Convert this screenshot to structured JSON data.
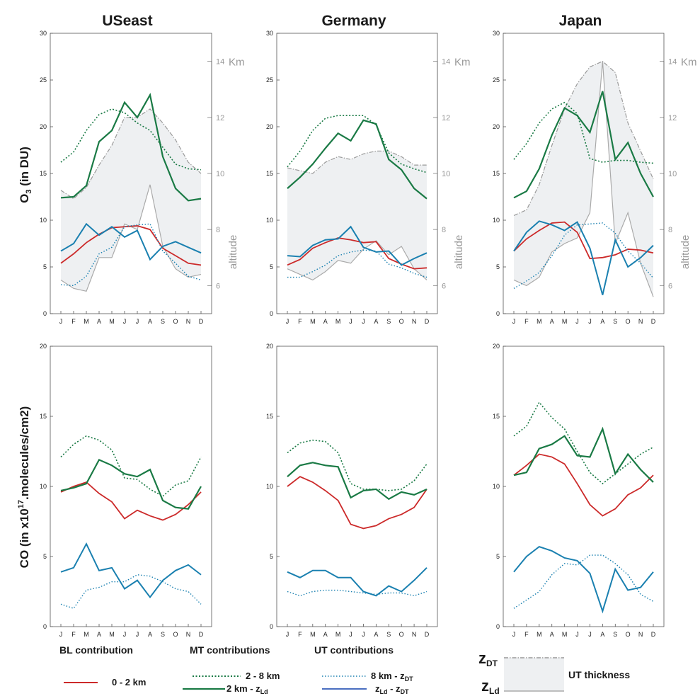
{
  "months": [
    "J",
    "F",
    "M",
    "A",
    "M",
    "J",
    "J",
    "A",
    "S",
    "O",
    "N",
    "D"
  ],
  "colors": {
    "bl": "#cc2a2a",
    "mt": "#1a7a45",
    "ut": "#1a80b0",
    "band": "#eef0f2",
    "grey": "#aaaaaa"
  },
  "labels": {
    "o3_ylabel": "O3 (in DU)",
    "o3_main": "O",
    "o3_sub": "3",
    "o3_rest": " (in DU)",
    "co_main": "CO (in x10",
    "co_sup": "17",
    "co_rest": ".molecules/cm2)",
    "altitude": "altitude",
    "km": "Km",
    "alt_ticks": [
      "6",
      "8",
      "10",
      "12",
      "14"
    ],
    "o3_yticks": [
      "0",
      "5",
      "10",
      "15",
      "20",
      "25",
      "30"
    ],
    "co_yticks": [
      "0",
      "5",
      "10",
      "15",
      "20"
    ]
  },
  "legend": {
    "bl_header": "BL contribution",
    "mt_header": "MT contributions",
    "ut_header": "UT contributions",
    "bl_item": "0 - 2 km",
    "mt_item1": "2 - 8 km",
    "mt_item2_main": "2 km - z",
    "mt_item2_sub": "Ld",
    "ut_item1_main": "8 km - z",
    "ut_item1_sub": "DT",
    "ut_item2_z1": "z",
    "ut_item2_s1": "Ld",
    "ut_item2_mid": " - z",
    "ut_item2_s2": "DT",
    "zdt_main": "z",
    "zdt_sub": "DT",
    "zld_main": "z",
    "zld_sub": "Ld",
    "ut_thickness": "UT thickness"
  },
  "chart_data": [
    {
      "type": "line",
      "title": "USeast",
      "region": "O3",
      "ylim": [
        0,
        30
      ],
      "altlim": [
        5,
        15
      ],
      "series": [
        {
          "name": "0 - 2 km",
          "values": [
            5.4,
            6.4,
            7.6,
            8.5,
            9.2,
            9.3,
            9.4,
            9.0,
            7.0,
            6.2,
            5.4,
            5.2
          ]
        },
        {
          "name": "2 - 8 km",
          "values": [
            16.2,
            17.3,
            19.6,
            21.3,
            21.9,
            21.5,
            20.4,
            19.6,
            17.8,
            16.0,
            15.5,
            15.4
          ]
        },
        {
          "name": "2 km - zLd",
          "values": [
            12.4,
            12.5,
            13.7,
            18.4,
            19.6,
            22.6,
            21.0,
            23.4,
            16.8,
            13.4,
            12.1,
            12.3
          ]
        },
        {
          "name": "8 km - zDT",
          "values": [
            3.1,
            3.0,
            4.0,
            6.4,
            7.1,
            9.3,
            9.5,
            9.6,
            6.7,
            5.4,
            4.0,
            3.6
          ]
        },
        {
          "name": "zLd - zDT",
          "values": [
            6.7,
            7.5,
            9.6,
            8.4,
            9.3,
            8.2,
            8.9,
            5.8,
            7.2,
            7.7,
            7.1,
            6.5
          ]
        }
      ],
      "z_dt_km": [
        9.4,
        9.1,
        9.5,
        10.3,
        11.0,
        12.0,
        12.0,
        12.3,
        11.8,
        11.2,
        10.4,
        10.0
      ],
      "z_ld_km": [
        6.2,
        5.9,
        5.8,
        7.0,
        7.0,
        8.2,
        8.0,
        9.6,
        7.4,
        6.6,
        6.3,
        6.4
      ]
    },
    {
      "type": "line",
      "title": "Germany",
      "region": "O3",
      "ylim": [
        0,
        30
      ],
      "altlim": [
        5,
        15
      ],
      "series": [
        {
          "name": "0 - 2 km",
          "values": [
            5.2,
            5.8,
            7.0,
            7.6,
            8.1,
            7.9,
            7.6,
            7.7,
            5.9,
            5.3,
            4.8,
            4.9
          ]
        },
        {
          "name": "2 - 8 km",
          "values": [
            15.7,
            17.4,
            19.6,
            20.9,
            21.2,
            21.2,
            21.2,
            20.2,
            17.2,
            16.0,
            15.5,
            15.1
          ]
        },
        {
          "name": "2 km - zLd",
          "values": [
            13.4,
            14.6,
            16.0,
            17.7,
            19.3,
            18.5,
            20.7,
            20.3,
            16.5,
            15.4,
            13.4,
            12.3
          ]
        },
        {
          "name": "8 km - zDT",
          "values": [
            3.9,
            3.9,
            4.5,
            5.2,
            6.2,
            6.6,
            6.8,
            6.7,
            5.3,
            4.9,
            4.3,
            3.9
          ]
        },
        {
          "name": "zLd - zDT",
          "values": [
            6.2,
            6.1,
            7.3,
            7.9,
            8.0,
            9.3,
            7.1,
            6.6,
            6.7,
            5.2,
            5.9,
            6.5
          ]
        }
      ],
      "z_dt_km": [
        10.2,
        10.1,
        10.0,
        10.4,
        10.6,
        10.5,
        10.7,
        10.8,
        10.8,
        10.6,
        10.3,
        10.3
      ],
      "z_ld_km": [
        6.6,
        6.4,
        6.2,
        6.5,
        6.9,
        6.8,
        7.3,
        7.6,
        7.1,
        7.4,
        6.6,
        6.2
      ]
    },
    {
      "type": "line",
      "title": "Japan",
      "region": "O3",
      "ylim": [
        0,
        30
      ],
      "altlim": [
        5,
        15
      ],
      "series": [
        {
          "name": "0 - 2 km",
          "values": [
            6.7,
            8.0,
            8.9,
            9.7,
            9.8,
            8.7,
            5.9,
            6.0,
            6.3,
            6.9,
            6.8,
            6.5
          ]
        },
        {
          "name": "2 - 8 km",
          "values": [
            16.5,
            18.2,
            20.4,
            21.9,
            22.6,
            21.4,
            16.6,
            16.2,
            16.4,
            16.4,
            16.2,
            16.1
          ]
        },
        {
          "name": "2 km - zLd",
          "values": [
            12.4,
            13.1,
            15.5,
            19.1,
            22.0,
            21.2,
            19.4,
            23.8,
            16.5,
            18.3,
            15.0,
            12.5
          ]
        },
        {
          "name": "8 km - zDT",
          "values": [
            2.7,
            3.5,
            4.4,
            6.2,
            8.4,
            9.5,
            9.6,
            9.7,
            8.6,
            6.7,
            5.4,
            3.8
          ]
        },
        {
          "name": "zLd - zDT",
          "values": [
            6.7,
            8.7,
            9.9,
            9.5,
            8.9,
            9.8,
            7.0,
            2.0,
            7.9,
            5.0,
            6.0,
            7.3
          ]
        }
      ],
      "z_dt_km": [
        8.5,
        8.7,
        9.6,
        11.0,
        12.3,
        13.2,
        13.8,
        14.0,
        13.6,
        11.8,
        10.8,
        9.8
      ],
      "z_ld_km": [
        6.2,
        6.0,
        6.3,
        7.2,
        7.5,
        7.7,
        8.6,
        14.0,
        7.5,
        8.6,
        6.8,
        5.6
      ]
    },
    {
      "type": "line",
      "title": "",
      "region": "CO-USeast",
      "ylim": [
        0,
        20
      ],
      "series": [
        {
          "name": "0 - 2 km",
          "values": [
            9.6,
            10.0,
            10.3,
            9.5,
            8.9,
            7.7,
            8.3,
            7.9,
            7.6,
            8.0,
            8.7,
            9.6
          ]
        },
        {
          "name": "2 - 8 km",
          "values": [
            12.1,
            13.0,
            13.6,
            13.3,
            12.6,
            10.6,
            10.5,
            9.8,
            9.3,
            10.1,
            10.4,
            12.1
          ]
        },
        {
          "name": "2 km - zLd",
          "values": [
            9.7,
            9.9,
            10.2,
            11.9,
            11.5,
            10.9,
            10.7,
            11.2,
            9.0,
            8.5,
            8.4,
            10.0
          ]
        },
        {
          "name": "8 km - zDT",
          "values": [
            1.6,
            1.3,
            2.6,
            2.8,
            3.2,
            3.2,
            3.7,
            3.6,
            3.2,
            2.7,
            2.5,
            1.6
          ]
        },
        {
          "name": "zLd - zDT",
          "values": [
            3.9,
            4.2,
            5.9,
            4.0,
            4.2,
            2.7,
            3.3,
            2.1,
            3.3,
            4.0,
            4.4,
            3.7
          ]
        }
      ]
    },
    {
      "type": "line",
      "title": "",
      "region": "CO-Germany",
      "ylim": [
        0,
        20
      ],
      "series": [
        {
          "name": "0 - 2 km",
          "values": [
            10.0,
            10.7,
            10.3,
            9.7,
            9.0,
            7.3,
            7.0,
            7.2,
            7.7,
            8.0,
            8.5,
            9.8
          ]
        },
        {
          "name": "2 - 8 km",
          "values": [
            12.4,
            13.1,
            13.3,
            13.2,
            12.4,
            10.2,
            9.8,
            9.8,
            9.7,
            9.8,
            10.4,
            11.6
          ]
        },
        {
          "name": "2 km - zLd",
          "values": [
            10.7,
            11.5,
            11.7,
            11.5,
            11.4,
            9.2,
            9.7,
            9.8,
            9.1,
            9.6,
            9.4,
            9.8
          ]
        },
        {
          "name": "8 km - zDT",
          "values": [
            2.5,
            2.2,
            2.5,
            2.6,
            2.6,
            2.5,
            2.4,
            2.3,
            2.4,
            2.4,
            2.2,
            2.5
          ]
        },
        {
          "name": "zLd - zDT",
          "values": [
            3.9,
            3.5,
            4.0,
            4.0,
            3.5,
            3.5,
            2.5,
            2.2,
            2.9,
            2.5,
            3.3,
            4.2
          ]
        }
      ]
    },
    {
      "type": "line",
      "title": "",
      "region": "CO-Japan",
      "ylim": [
        0,
        20
      ],
      "series": [
        {
          "name": "0 - 2 km",
          "values": [
            10.8,
            11.5,
            12.3,
            12.1,
            11.6,
            10.2,
            8.7,
            7.9,
            8.4,
            9.4,
            9.9,
            10.8
          ]
        },
        {
          "name": "2 - 8 km",
          "values": [
            13.6,
            14.3,
            16.0,
            14.9,
            14.1,
            12.5,
            11.0,
            10.2,
            10.9,
            11.6,
            12.3,
            12.8
          ]
        },
        {
          "name": "2 km - zLd",
          "values": [
            10.8,
            11.0,
            12.7,
            13.0,
            13.6,
            12.2,
            12.1,
            14.1,
            10.9,
            12.3,
            11.2,
            10.3
          ]
        },
        {
          "name": "8 km - zDT",
          "values": [
            1.3,
            1.9,
            2.5,
            3.7,
            4.5,
            4.4,
            5.1,
            5.1,
            4.5,
            3.7,
            2.3,
            1.8
          ]
        },
        {
          "name": "zLd - zDT",
          "values": [
            3.9,
            5.0,
            5.7,
            5.4,
            4.9,
            4.7,
            3.8,
            1.1,
            4.1,
            2.6,
            2.8,
            3.9
          ]
        }
      ]
    }
  ]
}
